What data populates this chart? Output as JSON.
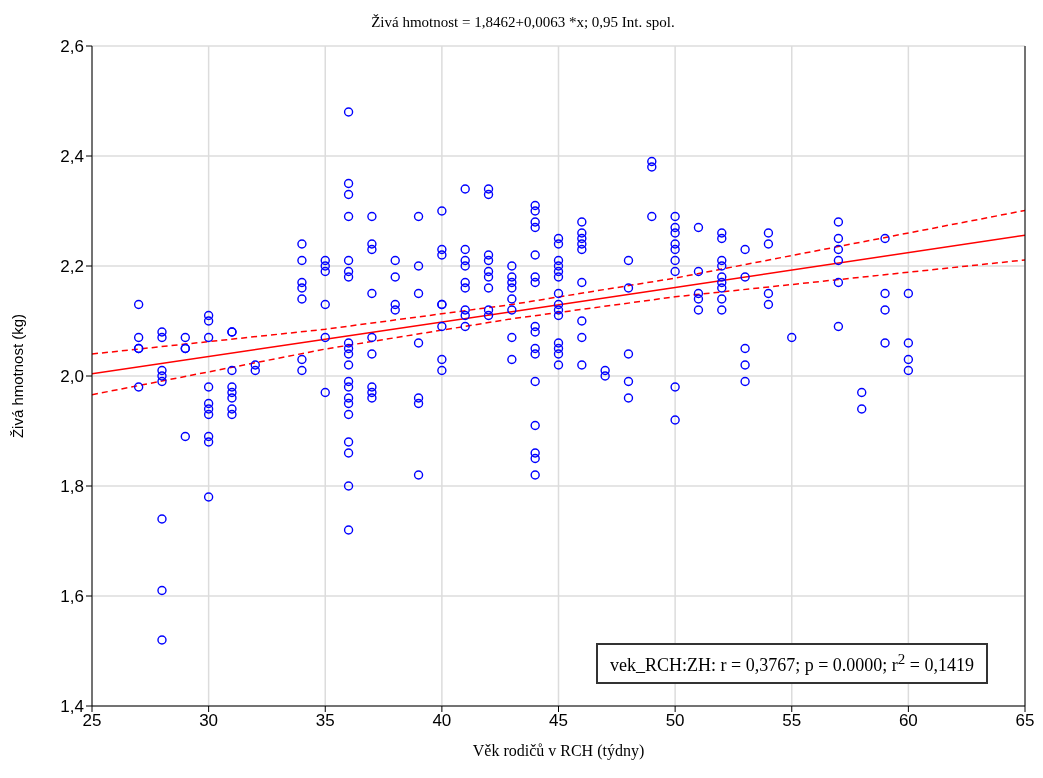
{
  "chart_data": {
    "type": "scatter",
    "title": "Živá hmotnost = 1,8462+0,0063 *x; 0,95 Int. spol.",
    "xlabel": "Věk rodičů v RCH (týdny)",
    "ylabel": "Živá hmotnost (kg)",
    "xlim": [
      25,
      65
    ],
    "xticks": [
      25,
      30,
      35,
      40,
      45,
      50,
      55,
      60,
      65
    ],
    "ylim": [
      1.4,
      2.6
    ],
    "yticks": [
      {
        "value": 1.4,
        "label": "1,4"
      },
      {
        "value": 1.6,
        "label": "1,6"
      },
      {
        "value": 1.8,
        "label": "1,8"
      },
      {
        "value": 2.0,
        "label": "2,0"
      },
      {
        "value": 2.2,
        "label": "2,2"
      },
      {
        "value": 2.4,
        "label": "2,4"
      },
      {
        "value": 2.6,
        "label": "2,6"
      }
    ],
    "grid": true,
    "annotations": [
      "vek_RCH:ZH:   r = 0,3767; p = 0.0000; r$^{2}$ = 0,1419"
    ],
    "series": [
      {
        "color": "#0000ff",
        "marker": "circle",
        "x": [
          27,
          27,
          27,
          27,
          27,
          28,
          28,
          28,
          28,
          28,
          28,
          28,
          28,
          29,
          29,
          29,
          29,
          30,
          30,
          30,
          30,
          30,
          30,
          30,
          30,
          30,
          30,
          31,
          31,
          31,
          31,
          31,
          31,
          31,
          31,
          32,
          32,
          34,
          34,
          34,
          34,
          34,
          34,
          34,
          35,
          35,
          35,
          35,
          35,
          35,
          36,
          36,
          36,
          36,
          36,
          36,
          36,
          36,
          36,
          36,
          36,
          36,
          36,
          36,
          36,
          36,
          36,
          36,
          36,
          36,
          37,
          37,
          37,
          37,
          37,
          37,
          37,
          37,
          37,
          38,
          38,
          38,
          38,
          39,
          39,
          39,
          39,
          39,
          39,
          39,
          40,
          40,
          40,
          40,
          40,
          40,
          40,
          40,
          41,
          41,
          41,
          41,
          41,
          41,
          41,
          41,
          41,
          42,
          42,
          42,
          42,
          42,
          42,
          42,
          42,
          42,
          43,
          43,
          43,
          43,
          43,
          43,
          43,
          43,
          44,
          44,
          44,
          44,
          44,
          44,
          44,
          44,
          44,
          44,
          44,
          44,
          44,
          44,
          44,
          44,
          45,
          45,
          45,
          45,
          45,
          45,
          45,
          45,
          45,
          45,
          45,
          45,
          45,
          45,
          46,
          46,
          46,
          46,
          46,
          46,
          46,
          46,
          46,
          47,
          47,
          48,
          48,
          48,
          48,
          48,
          49,
          49,
          49,
          50,
          50,
          50,
          50,
          50,
          50,
          50,
          50,
          50,
          51,
          51,
          51,
          51,
          51,
          52,
          52,
          52,
          52,
          52,
          52,
          52,
          52,
          52,
          53,
          53,
          53,
          53,
          53,
          54,
          54,
          54,
          54,
          55,
          57,
          57,
          57,
          57,
          57,
          57,
          58,
          58,
          59,
          59,
          59,
          59,
          60,
          60,
          60,
          60
        ],
        "values": [
          2.13,
          2.07,
          2.05,
          2.05,
          1.98,
          2.08,
          2.07,
          2.01,
          2.0,
          1.99,
          1.74,
          1.61,
          1.52,
          2.07,
          2.05,
          2.05,
          1.89,
          2.11,
          2.1,
          2.07,
          1.98,
          1.95,
          1.94,
          1.93,
          1.89,
          1.88,
          1.78,
          2.08,
          2.08,
          2.01,
          1.98,
          1.97,
          1.96,
          1.94,
          1.93,
          2.02,
          2.01,
          2.24,
          2.21,
          2.17,
          2.16,
          2.14,
          2.03,
          2.01,
          2.21,
          2.2,
          2.19,
          2.13,
          2.07,
          1.97,
          2.48,
          2.35,
          2.33,
          2.29,
          2.21,
          2.19,
          2.18,
          2.06,
          2.05,
          2.04,
          2.02,
          1.99,
          1.98,
          1.96,
          1.95,
          1.93,
          1.88,
          1.86,
          1.8,
          1.72,
          2.29,
          2.24,
          2.23,
          2.15,
          2.07,
          2.04,
          1.98,
          1.97,
          1.96,
          2.21,
          2.18,
          2.13,
          2.12,
          2.29,
          2.2,
          2.15,
          2.06,
          1.96,
          1.95,
          1.82,
          2.3,
          2.23,
          2.22,
          2.13,
          2.13,
          2.09,
          2.03,
          2.01,
          2.34,
          2.23,
          2.21,
          2.2,
          2.17,
          2.16,
          2.12,
          2.11,
          2.09,
          2.34,
          2.33,
          2.22,
          2.21,
          2.19,
          2.18,
          2.16,
          2.12,
          2.11,
          2.2,
          2.18,
          2.17,
          2.16,
          2.14,
          2.12,
          2.07,
          2.03,
          2.31,
          2.3,
          2.28,
          2.27,
          2.22,
          2.18,
          2.17,
          2.09,
          2.08,
          2.05,
          2.04,
          1.99,
          1.91,
          1.86,
          1.85,
          1.82,
          2.25,
          2.24,
          2.21,
          2.2,
          2.19,
          2.18,
          2.15,
          2.13,
          2.12,
          2.11,
          2.06,
          2.05,
          2.04,
          2.02,
          2.28,
          2.26,
          2.25,
          2.24,
          2.23,
          2.17,
          2.1,
          2.07,
          2.02,
          2.01,
          2.0,
          2.21,
          2.16,
          2.04,
          1.99,
          1.96,
          2.39,
          2.38,
          2.29,
          2.29,
          2.27,
          2.26,
          2.24,
          2.23,
          2.21,
          2.19,
          1.98,
          1.92,
          2.27,
          2.19,
          2.15,
          2.14,
          2.12,
          2.26,
          2.25,
          2.21,
          2.2,
          2.18,
          2.17,
          2.16,
          2.14,
          2.12,
          2.23,
          2.18,
          2.05,
          2.02,
          1.99,
          2.26,
          2.24,
          2.15,
          2.13,
          2.07,
          2.28,
          2.25,
          2.23,
          2.21,
          2.17,
          2.09,
          1.97,
          1.94,
          2.25,
          2.15,
          2.12,
          2.06,
          2.15,
          2.06,
          2.03,
          2.01
        ]
      },
      {
        "type": "line",
        "color": "#ff0000",
        "marker": "none",
        "line_style": "solid",
        "x": [
          25,
          35,
          43,
          50,
          65
        ],
        "values": [
          2.004,
          2.067,
          2.117,
          2.161,
          2.256
        ]
      },
      {
        "type": "line",
        "color": "#ff0000",
        "marker": "none",
        "line_style": "dashed",
        "x": [
          25,
          35,
          43,
          50,
          65
        ],
        "values": [
          2.04,
          2.085,
          2.13,
          2.178,
          2.301
        ]
      },
      {
        "type": "line",
        "color": "#ff0000",
        "marker": "none",
        "line_style": "dashed",
        "x": [
          25,
          35,
          43,
          50,
          65
        ],
        "values": [
          1.966,
          2.049,
          2.104,
          2.144,
          2.211
        ]
      }
    ]
  }
}
